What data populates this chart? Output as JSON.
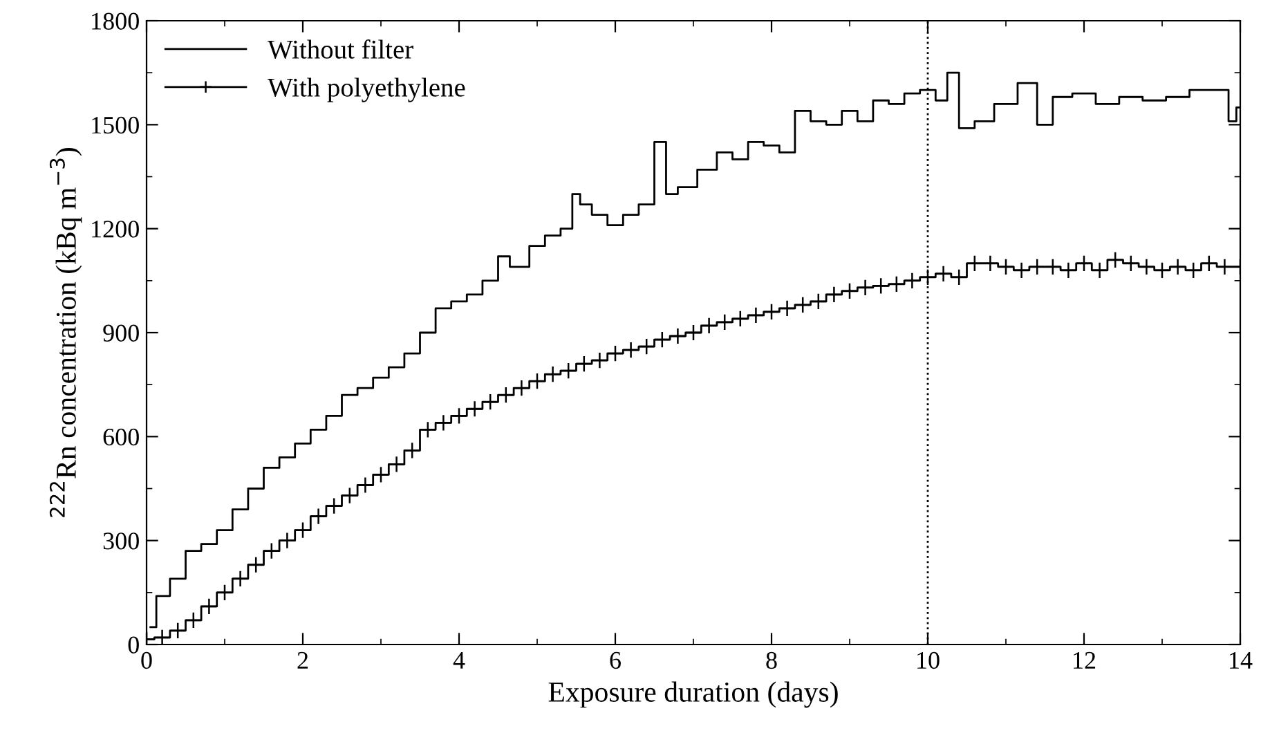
{
  "chart_data": {
    "type": "step",
    "xlabel": "Exposure duration (days)",
    "ylabel": "$^{222}$Rn concentration (kBq m$^{−3}$)",
    "xlim": [
      0,
      14
    ],
    "ylim": [
      0,
      1800
    ],
    "xticks": [
      0,
      2,
      4,
      6,
      8,
      10,
      12,
      14
    ],
    "yticks": [
      0,
      300,
      600,
      900,
      1200,
      1500,
      1800
    ],
    "grid": false,
    "legend": "top left",
    "ref_lines": [
      {
        "axis": "x",
        "value": 10,
        "color": "#000000",
        "line_style": "dotted"
      }
    ],
    "series": [
      {
        "name": "Without filter",
        "color": "#000000",
        "marker": "none",
        "x": [
          0.05,
          0.2,
          0.4,
          0.6,
          0.8,
          1.0,
          1.2,
          1.4,
          1.6,
          1.8,
          2.0,
          2.2,
          2.4,
          2.6,
          2.8,
          3.0,
          3.2,
          3.4,
          3.6,
          3.8,
          4.0,
          4.2,
          4.4,
          4.6,
          4.7,
          4.8,
          5.0,
          5.2,
          5.4,
          5.5,
          5.6,
          5.8,
          6.0,
          6.2,
          6.4,
          6.6,
          6.7,
          6.9,
          7.2,
          7.4,
          7.6,
          7.8,
          8.0,
          8.2,
          8.4,
          8.6,
          8.8,
          9.0,
          9.2,
          9.4,
          9.6,
          9.8,
          10.0,
          10.2,
          10.3,
          10.5,
          10.7,
          11.0,
          11.3,
          11.5,
          11.7,
          12.0,
          12.3,
          12.6,
          12.9,
          13.2,
          13.5,
          13.8,
          13.9,
          14.0
        ],
        "values": [
          50,
          140,
          190,
          270,
          290,
          330,
          390,
          450,
          510,
          540,
          580,
          620,
          660,
          720,
          740,
          770,
          800,
          840,
          900,
          970,
          990,
          1010,
          1050,
          1120,
          1090,
          1090,
          1150,
          1180,
          1200,
          1300,
          1270,
          1240,
          1210,
          1240,
          1270,
          1450,
          1300,
          1320,
          1370,
          1420,
          1400,
          1450,
          1440,
          1420,
          1540,
          1510,
          1500,
          1540,
          1510,
          1570,
          1560,
          1590,
          1600,
          1570,
          1650,
          1490,
          1510,
          1560,
          1620,
          1500,
          1580,
          1590,
          1560,
          1580,
          1570,
          1580,
          1600,
          1600,
          1510,
          1550
        ]
      },
      {
        "name": "With polyethylene",
        "color": "#000000",
        "marker": "cross",
        "x": [
          0,
          0.2,
          0.4,
          0.6,
          0.8,
          1.0,
          1.2,
          1.4,
          1.6,
          1.8,
          2.0,
          2.2,
          2.4,
          2.6,
          2.8,
          3.0,
          3.2,
          3.4,
          3.6,
          3.8,
          4.0,
          4.2,
          4.4,
          4.6,
          4.8,
          5.0,
          5.2,
          5.4,
          5.6,
          5.8,
          6.0,
          6.2,
          6.4,
          6.6,
          6.8,
          7.0,
          7.2,
          7.4,
          7.6,
          7.8,
          8.0,
          8.2,
          8.4,
          8.6,
          8.8,
          9.0,
          9.2,
          9.4,
          9.6,
          9.8,
          10.0,
          10.2,
          10.4,
          10.6,
          10.8,
          11.0,
          11.2,
          11.4,
          11.6,
          11.8,
          12.0,
          12.2,
          12.4,
          12.6,
          12.8,
          13.0,
          13.2,
          13.4,
          13.6,
          13.8,
          14.0
        ],
        "values": [
          15,
          20,
          40,
          70,
          110,
          150,
          190,
          230,
          270,
          300,
          330,
          370,
          400,
          430,
          460,
          490,
          520,
          560,
          620,
          640,
          660,
          680,
          700,
          720,
          740,
          760,
          780,
          790,
          810,
          820,
          840,
          850,
          860,
          880,
          890,
          900,
          920,
          930,
          940,
          950,
          960,
          970,
          980,
          990,
          1010,
          1020,
          1030,
          1035,
          1040,
          1050,
          1060,
          1070,
          1060,
          1100,
          1100,
          1090,
          1080,
          1090,
          1090,
          1080,
          1100,
          1080,
          1110,
          1100,
          1090,
          1080,
          1090,
          1080,
          1100,
          1090,
          1090
        ]
      }
    ]
  }
}
